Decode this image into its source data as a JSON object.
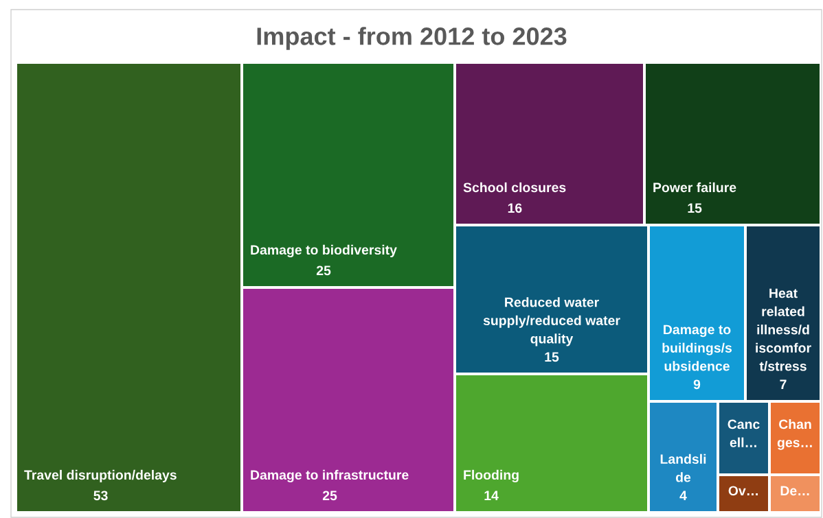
{
  "chart_data": {
    "type": "other",
    "title": "Impact - from 2012 to 2023",
    "categories": [
      "Travel disruption/delays",
      "Damage to biodiversity",
      "Damage to infrastructure",
      "School closures",
      "Power failure",
      "Reduced water\nsupply/reduced water\nquality",
      "Flooding",
      "Damage to\nbuildings/s\nubsidence",
      "Heat\nrelated\nillness/d\niscomfor\nt/stress",
      "Landsli\nde",
      "Canc\nell…",
      "Chan\nges…",
      "Ov…",
      "De…"
    ],
    "data_labels": true,
    "values": [
      53,
      25,
      25,
      16,
      15,
      15,
      14,
      9,
      7,
      4,
      null,
      null,
      null,
      null
    ],
    "colors": [
      "#31611f",
      "#1b6a25",
      "#9c2a92",
      "#5f1a55",
      "#114018",
      "#0c5b7b",
      "#4ea72e",
      "#129cd6",
      "#10384f",
      "#1e88c2",
      "#15587b",
      "#e97132",
      "#8f3d12",
      "#f0915e"
    ]
  }
}
